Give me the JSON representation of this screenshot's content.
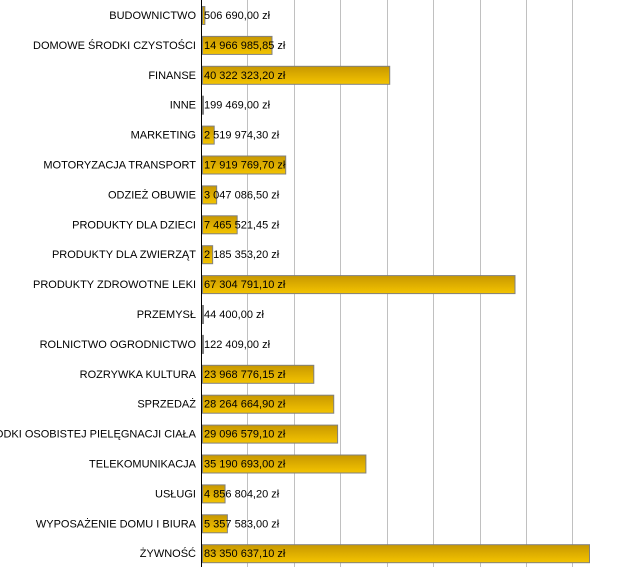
{
  "chart_data": {
    "type": "bar",
    "orientation": "horizontal",
    "categories": [
      "BUDOWNICTWO",
      "DOMOWE ŚRODKI CZYSTOŚCI",
      "FINANSE",
      "INNE",
      "MARKETING",
      "MOTORYZACJA TRANSPORT",
      "ODZIEŻ OBUWIE",
      "PRODUKTY DLA DZIECI",
      "PRODUKTY DLA ZWIERZĄT",
      "PRODUKTY ZDROWOTNE LEKI",
      "PRZEMYSŁ",
      "ROLNICTWO OGRODNICTWO",
      "ROZRYWKA KULTURA",
      "SPRZEDAŻ",
      "ŚRODKI OSOBISTEJ PIELĘGNACJI CIAŁA",
      "TELEKOMUNIKACJA",
      "USŁUGI",
      "WYPOSAŻENIE DOMU I BIURA",
      "ŻYWNOŚĆ"
    ],
    "values": [
      506690.0,
      14966985.85,
      40322323.2,
      199469.0,
      2519974.3,
      17919769.7,
      3047086.5,
      7465521.45,
      2185353.2,
      67304791.1,
      44400.0,
      122409.0,
      23968776.15,
      28264664.9,
      29096579.1,
      35190693.0,
      4856804.2,
      5357583.0,
      83350637.1
    ],
    "data_labels": [
      "506 690,00 zł",
      "14 966 985,85 zł",
      "40 322 323,20 zł",
      "199 469,00 zł",
      "2 519 974,30 zł",
      "17 919 769,70 zł",
      "3 047 086,50 zł",
      "7 465 521,45 zł",
      "2 185 353,20 zł",
      "67 304 791,10 zł",
      "44 400,00 zł",
      "122 409,00 zł",
      "23 968 776,15 zł",
      "28 264 664,90 zł",
      "29 096 579,10 zł",
      "35 190 693,00 zł",
      "4 856 804,20 zł",
      "5 357 583,00 zł",
      "83 350 637,10 zł"
    ],
    "xlim": [
      0,
      90000000
    ],
    "grid_step": 10000000,
    "grid": true,
    "bar_color_top": "#c89800",
    "bar_color_bottom": "#f4c400",
    "bar_border": "#808080",
    "grid_color": "#c0c0c0"
  }
}
